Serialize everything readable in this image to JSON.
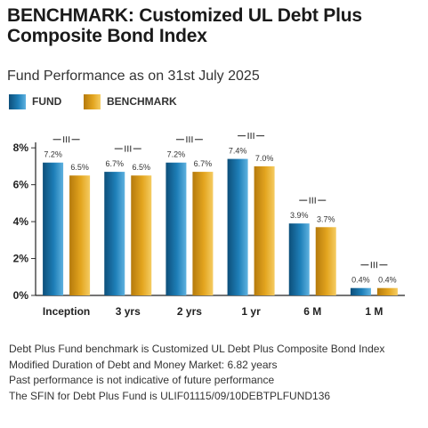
{
  "header": {
    "title": "BENCHMARK: Customized UL Debt Plus Composite Bond Index",
    "subtitle": "Fund Performance as on 31st July 2025"
  },
  "colors": {
    "fund": "#1e7fb8",
    "benchmark": "#e3a51f"
  },
  "chart_data": {
    "type": "bar",
    "categories": [
      "Inception",
      "3 yrs",
      "2 yrs",
      "1 yr",
      "6 M",
      "1 M"
    ],
    "series": [
      {
        "name": "FUND",
        "values": [
          7.2,
          6.7,
          7.2,
          7.4,
          3.9,
          0.4
        ],
        "labels": [
          "7.2%",
          "6.7%",
          "7.2%",
          "7.4%",
          "3.9%",
          "0.4%"
        ]
      },
      {
        "name": "BENCHMARK",
        "values": [
          6.5,
          6.5,
          6.7,
          7.0,
          3.7,
          0.4
        ],
        "labels": [
          "6.5%",
          "6.5%",
          "6.7%",
          "7.0%",
          "3.7%",
          "0.4%"
        ]
      }
    ],
    "yticks": [
      "0%",
      "2%",
      "4%",
      "6%",
      "8%"
    ],
    "ylim": [
      0,
      8.2
    ],
    "xlabel": "",
    "ylabel": "",
    "grid": false,
    "legend": "top-left"
  },
  "footnotes": [
    "Debt Plus Fund benchmark is Customized UL Debt Plus Composite Bond Index",
    "Modified Duration of Debt and Money Market: 6.82 years",
    "Past performance is not indicative of future performance",
    "The SFIN for Debt Plus Fund is ULIF01115/09/10DEBTPLFUND136"
  ]
}
